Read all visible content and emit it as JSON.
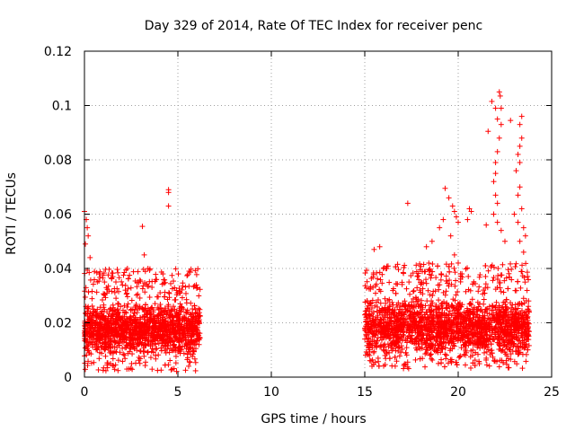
{
  "chart_data": {
    "type": "scatter",
    "title": "Day 329 of 2014, Rate Of TEC Index for receiver penc",
    "xlabel": "GPS time / hours",
    "ylabel": "ROTI / TECUs",
    "xlim": [
      0,
      25
    ],
    "ylim": [
      0,
      0.12
    ],
    "xticks": [
      0,
      5,
      10,
      15,
      20,
      25
    ],
    "xtick_labels": [
      "0",
      "5",
      "10",
      "15",
      "20",
      "25"
    ],
    "yticks": [
      0,
      0.02,
      0.04,
      0.06,
      0.08,
      0.1,
      0.12
    ],
    "ytick_labels": [
      "0",
      "0.02",
      "0.04",
      "0.06",
      "0.08",
      "0.1",
      "0.12"
    ],
    "grid": true,
    "marker": "+",
    "color": "#ff0000",
    "series": [
      {
        "name": "ROTI",
        "segments": [
          {
            "x_start": 0.0,
            "x_end": 6.2,
            "typical_min": 0.007,
            "typical_max": 0.028,
            "floor": 0.002
          },
          {
            "x_start": 15.0,
            "x_end": 23.8,
            "typical_min": 0.007,
            "typical_max": 0.03,
            "floor": 0.003
          }
        ],
        "notable_points": [
          {
            "x": 0.0,
            "y": 0.061
          },
          {
            "x": 0.1,
            "y": 0.058
          },
          {
            "x": 0.15,
            "y": 0.055
          },
          {
            "x": 0.2,
            "y": 0.052
          },
          {
            "x": 0.05,
            "y": 0.049
          },
          {
            "x": 0.3,
            "y": 0.044
          },
          {
            "x": 2.3,
            "y": 0.04
          },
          {
            "x": 3.1,
            "y": 0.0555
          },
          {
            "x": 3.2,
            "y": 0.045
          },
          {
            "x": 3.4,
            "y": 0.04
          },
          {
            "x": 4.5,
            "y": 0.069
          },
          {
            "x": 4.5,
            "y": 0.068
          },
          {
            "x": 4.5,
            "y": 0.063
          },
          {
            "x": 5.6,
            "y": 0.039
          },
          {
            "x": 4.2,
            "y": 0.038
          },
          {
            "x": 15.5,
            "y": 0.047
          },
          {
            "x": 15.8,
            "y": 0.048
          },
          {
            "x": 16.0,
            "y": 0.04
          },
          {
            "x": 17.3,
            "y": 0.064
          },
          {
            "x": 18.3,
            "y": 0.048
          },
          {
            "x": 18.6,
            "y": 0.05
          },
          {
            "x": 19.0,
            "y": 0.055
          },
          {
            "x": 19.2,
            "y": 0.058
          },
          {
            "x": 19.3,
            "y": 0.0695
          },
          {
            "x": 19.5,
            "y": 0.066
          },
          {
            "x": 19.7,
            "y": 0.063
          },
          {
            "x": 19.8,
            "y": 0.061
          },
          {
            "x": 19.9,
            "y": 0.059
          },
          {
            "x": 20.0,
            "y": 0.057
          },
          {
            "x": 19.6,
            "y": 0.052
          },
          {
            "x": 19.8,
            "y": 0.045
          },
          {
            "x": 20.0,
            "y": 0.042
          },
          {
            "x": 20.2,
            "y": 0.038
          },
          {
            "x": 20.6,
            "y": 0.062
          },
          {
            "x": 20.7,
            "y": 0.061
          },
          {
            "x": 20.5,
            "y": 0.058
          },
          {
            "x": 21.5,
            "y": 0.056
          },
          {
            "x": 21.6,
            "y": 0.0905
          },
          {
            "x": 21.8,
            "y": 0.1015
          },
          {
            "x": 22.0,
            "y": 0.099
          },
          {
            "x": 22.1,
            "y": 0.095
          },
          {
            "x": 22.2,
            "y": 0.105
          },
          {
            "x": 22.25,
            "y": 0.1035
          },
          {
            "x": 22.3,
            "y": 0.099
          },
          {
            "x": 22.3,
            "y": 0.093
          },
          {
            "x": 22.2,
            "y": 0.088
          },
          {
            "x": 22.1,
            "y": 0.083
          },
          {
            "x": 22.0,
            "y": 0.079
          },
          {
            "x": 22.0,
            "y": 0.075
          },
          {
            "x": 21.9,
            "y": 0.072
          },
          {
            "x": 22.0,
            "y": 0.067
          },
          {
            "x": 22.1,
            "y": 0.064
          },
          {
            "x": 21.9,
            "y": 0.06
          },
          {
            "x": 22.1,
            "y": 0.057
          },
          {
            "x": 22.3,
            "y": 0.054
          },
          {
            "x": 22.5,
            "y": 0.05
          },
          {
            "x": 22.8,
            "y": 0.0945
          },
          {
            "x": 23.4,
            "y": 0.096
          },
          {
            "x": 23.3,
            "y": 0.093
          },
          {
            "x": 23.4,
            "y": 0.088
          },
          {
            "x": 23.3,
            "y": 0.085
          },
          {
            "x": 23.2,
            "y": 0.082
          },
          {
            "x": 23.3,
            "y": 0.079
          },
          {
            "x": 23.1,
            "y": 0.076
          },
          {
            "x": 23.3,
            "y": 0.07
          },
          {
            "x": 23.2,
            "y": 0.067
          },
          {
            "x": 23.4,
            "y": 0.062
          },
          {
            "x": 23.0,
            "y": 0.06
          },
          {
            "x": 23.2,
            "y": 0.057
          },
          {
            "x": 23.5,
            "y": 0.055
          },
          {
            "x": 23.6,
            "y": 0.052
          },
          {
            "x": 23.3,
            "y": 0.05
          },
          {
            "x": 23.5,
            "y": 0.046
          }
        ]
      }
    ]
  }
}
